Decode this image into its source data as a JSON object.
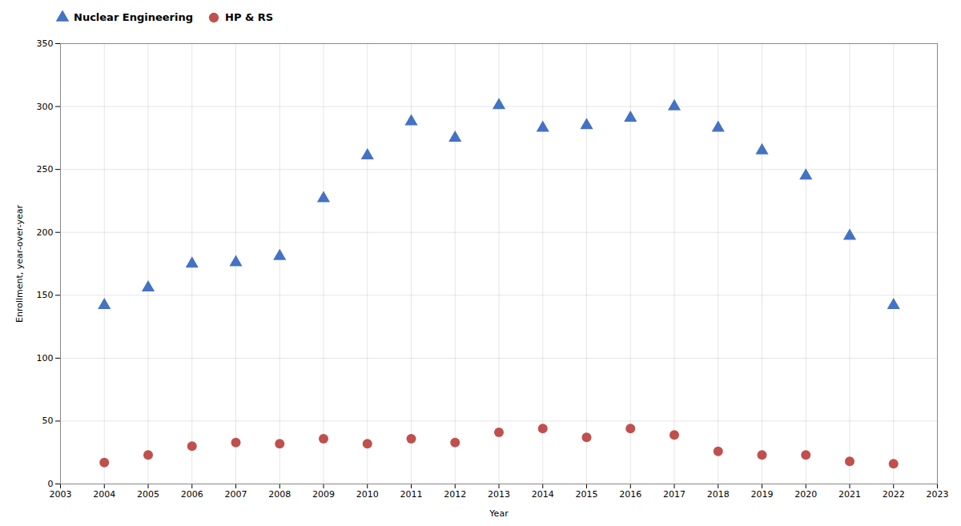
{
  "chart_data": {
    "type": "scatter",
    "x": [
      2004,
      2005,
      2006,
      2007,
      2008,
      2009,
      2010,
      2011,
      2012,
      2013,
      2014,
      2015,
      2016,
      2017,
      2018,
      2019,
      2020,
      2021,
      2022
    ],
    "series": [
      {
        "name": "Nuclear Engineering",
        "color": "#4472C4",
        "marker": "triangle",
        "values": [
          142,
          156,
          175,
          176,
          181,
          227,
          261,
          288,
          275,
          301,
          283,
          285,
          291,
          300,
          283,
          265,
          245,
          197,
          142
        ]
      },
      {
        "name": "HP & RS",
        "color": "#C0504D",
        "marker": "circle",
        "values": [
          17,
          23,
          30,
          33,
          32,
          36,
          32,
          36,
          33,
          41,
          44,
          37,
          44,
          39,
          26,
          23,
          23,
          18,
          16
        ]
      }
    ],
    "xlabel": "Year",
    "ylabel": "Enrollment, year-over-year",
    "xlim": [
      2003,
      2023
    ],
    "ylim": [
      0,
      350
    ],
    "xticks": [
      2003,
      2004,
      2005,
      2006,
      2007,
      2008,
      2009,
      2010,
      2011,
      2012,
      2013,
      2014,
      2015,
      2016,
      2017,
      2018,
      2019,
      2020,
      2021,
      2022,
      2023
    ],
    "yticks": [
      0,
      50,
      100,
      150,
      200,
      250,
      300,
      350
    ],
    "grid": true,
    "legend": "upper left"
  }
}
